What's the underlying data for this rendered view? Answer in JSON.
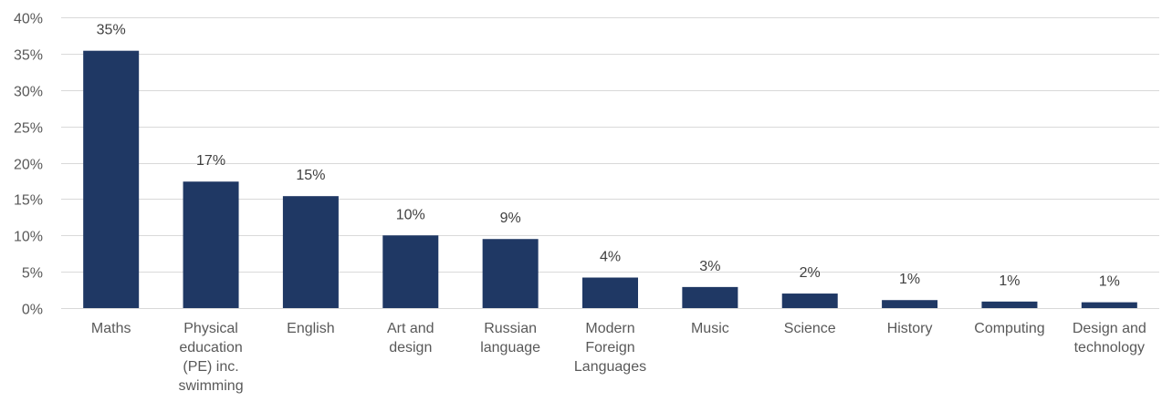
{
  "chart_data": {
    "type": "bar",
    "title": "",
    "xlabel": "",
    "ylabel": "",
    "categories": [
      [
        "Maths"
      ],
      [
        "Physical",
        "education",
        "(PE) inc.",
        "swimming"
      ],
      [
        "English"
      ],
      [
        "Art and",
        "design"
      ],
      [
        "Russian",
        "language"
      ],
      [
        "Modern",
        "Foreign",
        "Languages"
      ],
      [
        "Music"
      ],
      [
        "Science"
      ],
      [
        "History"
      ],
      [
        "Computing"
      ],
      [
        "Design and",
        "technology"
      ]
    ],
    "values": [
      0.354,
      0.174,
      0.154,
      0.1,
      0.095,
      0.042,
      0.029,
      0.02,
      0.011,
      0.009,
      0.008
    ],
    "data_labels": [
      "35%",
      "17%",
      "15%",
      "10%",
      "9%",
      "4%",
      "3%",
      "2%",
      "1%",
      "1%",
      "1%"
    ],
    "ylim": [
      0,
      0.4
    ],
    "yticks": [
      0,
      0.05,
      0.1,
      0.15,
      0.2,
      0.25,
      0.3,
      0.35,
      0.4
    ],
    "ytick_labels": [
      "0%",
      "5%",
      "10%",
      "15%",
      "20%",
      "25%",
      "30%",
      "35%",
      "40%"
    ],
    "grid": true,
    "legend": "none",
    "colors": {
      "bar": "#1f3864",
      "grid": "#d9d9d9",
      "text": "#595959"
    }
  }
}
